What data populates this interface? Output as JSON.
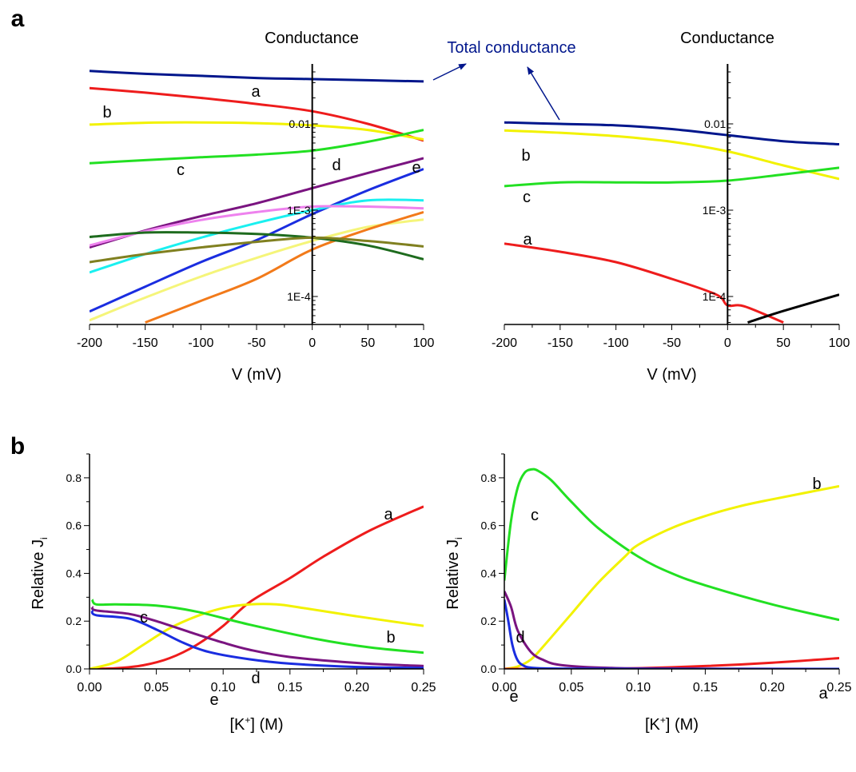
{
  "panel_labels": {
    "a": "a",
    "b": "b"
  },
  "annotations": {
    "total_conductance": "Total conductance"
  },
  "colors": {
    "navy": "#00168C",
    "red": "#EE1C1C",
    "yellow": "#F2F200",
    "green": "#22E022",
    "purple": "#7A1480",
    "blue": "#1A2DE0",
    "cyan": "#1AF0F0",
    "violet": "#EE82EE",
    "lightyellow": "#F5F57A",
    "orange": "#F27A1A",
    "darkgreen": "#1E6B1E",
    "olive": "#808020",
    "black": "#000000"
  },
  "chart_data": [
    {
      "id": "a-left",
      "type": "line",
      "title": "Conductance",
      "xlabel": "V (mV)",
      "ylabel": "",
      "xlim": [
        -200,
        100
      ],
      "ylim_log": [
        5e-05,
        0.1
      ],
      "yscale": "log",
      "xticks": [
        -200,
        -150,
        -100,
        -50,
        0,
        50,
        100
      ],
      "xtick_labels": [
        "-200",
        "-150",
        "-100",
        "-50",
        "0",
        "50",
        "100"
      ],
      "yticks": [
        0.01,
        0.001,
        0.0001
      ],
      "ytick_labels": [
        "0.01",
        "1E-3",
        "1E-4"
      ],
      "series": [
        {
          "name": "",
          "color": "navy",
          "x": [
            -200,
            -150,
            -100,
            -50,
            0,
            50,
            100
          ],
          "y": [
            0.041,
            0.038,
            0.036,
            0.034,
            0.033,
            0.032,
            0.031
          ]
        },
        {
          "name": "a",
          "color": "red",
          "x": [
            -200,
            -150,
            -100,
            -50,
            0,
            50,
            100
          ],
          "y": [
            0.026,
            0.023,
            0.02,
            0.017,
            0.014,
            0.01,
            0.0064
          ]
        },
        {
          "name": "b",
          "color": "yellow",
          "x": [
            -200,
            -150,
            -100,
            -50,
            0,
            50,
            100
          ],
          "y": [
            0.0098,
            0.0103,
            0.0104,
            0.0102,
            0.0096,
            0.0085,
            0.0066
          ]
        },
        {
          "name": "c",
          "color": "green",
          "x": [
            -200,
            -150,
            -100,
            -50,
            0,
            50,
            100
          ],
          "y": [
            0.0035,
            0.0038,
            0.0041,
            0.0044,
            0.0049,
            0.0062,
            0.0085
          ]
        },
        {
          "name": "d",
          "color": "purple",
          "x": [
            -200,
            -150,
            -100,
            -50,
            0,
            50,
            100
          ],
          "y": [
            0.00037,
            0.00058,
            0.00085,
            0.0012,
            0.0018,
            0.0027,
            0.004
          ]
        },
        {
          "name": "e",
          "color": "blue",
          "x": [
            -200,
            -150,
            -100,
            -50,
            0,
            50,
            100
          ],
          "y": [
            6.7e-05,
            0.00013,
            0.00025,
            0.00045,
            0.0009,
            0.0017,
            0.003
          ]
        },
        {
          "name": "",
          "color": "cyan",
          "x": [
            -200,
            -150,
            -100,
            -50,
            0,
            50,
            100
          ],
          "y": [
            0.00019,
            0.00031,
            0.00048,
            0.00071,
            0.001,
            0.0013,
            0.0013
          ]
        },
        {
          "name": "",
          "color": "violet",
          "x": [
            -200,
            -150,
            -100,
            -50,
            0,
            50,
            100
          ],
          "y": [
            0.00039,
            0.00057,
            0.00077,
            0.00095,
            0.0011,
            0.0011,
            0.00105
          ]
        },
        {
          "name": "",
          "color": "lightyellow",
          "x": [
            -200,
            -150,
            -100,
            -50,
            0,
            50,
            100
          ],
          "y": [
            5.3e-05,
            9.7e-05,
            0.00017,
            0.00028,
            0.00044,
            0.00064,
            0.00078
          ]
        },
        {
          "name": "",
          "color": "orange",
          "x": [
            -150,
            -100,
            -50,
            0,
            50,
            100
          ],
          "y": [
            5e-05,
            8.9e-05,
            0.00016,
            0.00035,
            0.0006,
            0.00095
          ]
        },
        {
          "name": "",
          "color": "darkgreen",
          "x": [
            -200,
            -150,
            -100,
            -50,
            0,
            50,
            100
          ],
          "y": [
            0.00049,
            0.00055,
            0.00055,
            0.00053,
            0.00048,
            0.00039,
            0.00027
          ]
        },
        {
          "name": "",
          "color": "olive",
          "x": [
            -200,
            -150,
            -100,
            -50,
            0,
            50,
            100
          ],
          "y": [
            0.00025,
            0.00031,
            0.00037,
            0.00043,
            0.00048,
            0.00044,
            0.00038
          ]
        }
      ],
      "vline_x": 0
    },
    {
      "id": "a-right",
      "type": "line",
      "title": "Conductance",
      "xlabel": "V (mV)",
      "ylabel": "",
      "xlim": [
        -200,
        100
      ],
      "ylim_log": [
        5e-05,
        0.1
      ],
      "yscale": "log",
      "xticks": [
        -200,
        -150,
        -100,
        -50,
        0,
        50,
        100
      ],
      "xtick_labels": [
        "-200",
        "-150",
        "-100",
        "-50",
        "0",
        "50",
        "100"
      ],
      "yticks": [
        0.01,
        0.001,
        0.0001
      ],
      "ytick_labels": [
        "0.01",
        "1E-3",
        "1E-4"
      ],
      "series": [
        {
          "name": "",
          "color": "navy",
          "x": [
            -200,
            -150,
            -100,
            -50,
            0,
            50,
            100
          ],
          "y": [
            0.0104,
            0.01,
            0.0096,
            0.0087,
            0.0074,
            0.0063,
            0.0058
          ]
        },
        {
          "name": "b",
          "color": "yellow",
          "x": [
            -200,
            -150,
            -100,
            -50,
            0,
            50,
            100
          ],
          "y": [
            0.0084,
            0.0079,
            0.0072,
            0.0062,
            0.0048,
            0.0033,
            0.0023
          ]
        },
        {
          "name": "c",
          "color": "green",
          "x": [
            -200,
            -150,
            -100,
            -50,
            0,
            50,
            100
          ],
          "y": [
            0.0019,
            0.0021,
            0.0021,
            0.0021,
            0.0022,
            0.0026,
            0.0031
          ]
        },
        {
          "name": "a",
          "color": "red",
          "x": [
            -200,
            -150,
            -100,
            -50,
            -10,
            0,
            15,
            50
          ],
          "y": [
            0.00041,
            0.00033,
            0.00025,
            0.00016,
            0.000105,
            7.9e-05,
            7.7e-05,
            5e-05
          ]
        },
        {
          "name": "",
          "color": "black",
          "x": [
            18,
            50,
            100
          ],
          "y": [
            5e-05,
            6.8e-05,
            0.000105
          ]
        }
      ],
      "vline_x": 0
    },
    {
      "id": "b-left",
      "type": "line",
      "title": "",
      "xlabel": "[K+] (M)",
      "ylabel": "Relative Ji",
      "xlim": [
        0,
        0.25
      ],
      "ylim": [
        0,
        0.9
      ],
      "xticks": [
        0,
        0.05,
        0.1,
        0.15,
        0.2,
        0.25
      ],
      "xtick_labels": [
        "0.00",
        "0.05",
        "0.10",
        "0.15",
        "0.20",
        "0.25"
      ],
      "yticks": [
        0,
        0.2,
        0.4,
        0.6,
        0.8
      ],
      "ytick_labels": [
        "0.0",
        "0.2",
        "0.4",
        "0.6",
        "0.8"
      ],
      "series": [
        {
          "name": "a",
          "color": "red",
          "x": [
            0.0,
            0.02,
            0.04,
            0.06,
            0.08,
            0.1,
            0.12,
            0.15,
            0.175,
            0.21,
            0.25
          ],
          "y": [
            0.0,
            0.003,
            0.015,
            0.045,
            0.1,
            0.18,
            0.28,
            0.38,
            0.47,
            0.58,
            0.68
          ]
        },
        {
          "name": "b",
          "color": "yellow",
          "x": [
            0.0,
            0.02,
            0.04,
            0.06,
            0.08,
            0.1,
            0.12,
            0.14,
            0.16,
            0.2,
            0.25
          ],
          "y": [
            0.0,
            0.03,
            0.1,
            0.17,
            0.22,
            0.255,
            0.27,
            0.27,
            0.255,
            0.22,
            0.18
          ]
        },
        {
          "name": "c",
          "color": "green",
          "x": [
            0.002,
            0.005,
            0.02,
            0.05,
            0.08,
            0.12,
            0.17,
            0.21,
            0.25
          ],
          "y": [
            0.29,
            0.27,
            0.27,
            0.265,
            0.24,
            0.185,
            0.125,
            0.09,
            0.068
          ]
        },
        {
          "name": "d",
          "color": "purple",
          "x": [
            0.002,
            0.005,
            0.03,
            0.05,
            0.08,
            0.1,
            0.12,
            0.15,
            0.2,
            0.25
          ],
          "y": [
            0.26,
            0.245,
            0.23,
            0.2,
            0.145,
            0.11,
            0.08,
            0.05,
            0.025,
            0.012
          ]
        },
        {
          "name": "e",
          "color": "blue",
          "x": [
            0.002,
            0.005,
            0.03,
            0.05,
            0.07,
            0.09,
            0.12,
            0.15,
            0.2,
            0.25
          ],
          "y": [
            0.245,
            0.225,
            0.21,
            0.165,
            0.11,
            0.07,
            0.04,
            0.022,
            0.008,
            0.004
          ]
        }
      ]
    },
    {
      "id": "b-right",
      "type": "line",
      "title": "",
      "xlabel": "[K+] (M)",
      "ylabel": "Relative Ji",
      "xlim": [
        0,
        0.25
      ],
      "ylim": [
        0,
        0.9
      ],
      "xticks": [
        0,
        0.05,
        0.1,
        0.15,
        0.2,
        0.25
      ],
      "xtick_labels": [
        "0.00",
        "0.05",
        "0.10",
        "0.15",
        "0.20",
        "0.25"
      ],
      "yticks": [
        0,
        0.2,
        0.4,
        0.6,
        0.8
      ],
      "ytick_labels": [
        "0.0",
        "0.2",
        "0.4",
        "0.6",
        "0.8"
      ],
      "series": [
        {
          "name": "c",
          "color": "green",
          "x": [
            0.0,
            0.005,
            0.01,
            0.015,
            0.02,
            0.025,
            0.035,
            0.05,
            0.07,
            0.1,
            0.125,
            0.15,
            0.2,
            0.25
          ],
          "y": [
            0.37,
            0.62,
            0.76,
            0.82,
            0.835,
            0.83,
            0.79,
            0.7,
            0.59,
            0.47,
            0.4,
            0.35,
            0.27,
            0.205
          ]
        },
        {
          "name": "b",
          "color": "yellow",
          "x": [
            0.0,
            0.01,
            0.02,
            0.03,
            0.05,
            0.07,
            0.09,
            0.1,
            0.125,
            0.15,
            0.175,
            0.2,
            0.25
          ],
          "y": [
            0.0,
            0.01,
            0.04,
            0.1,
            0.23,
            0.36,
            0.47,
            0.52,
            0.59,
            0.64,
            0.68,
            0.71,
            0.765
          ]
        },
        {
          "name": "a",
          "color": "red",
          "x": [
            0.0,
            0.05,
            0.1,
            0.15,
            0.2,
            0.25
          ],
          "y": [
            0.0,
            0.0,
            0.003,
            0.012,
            0.026,
            0.045
          ]
        },
        {
          "name": "d",
          "color": "purple",
          "x": [
            0.0,
            0.005,
            0.01,
            0.02,
            0.03,
            0.04,
            0.06,
            0.08,
            0.1,
            0.15,
            0.25
          ],
          "y": [
            0.325,
            0.26,
            0.16,
            0.07,
            0.035,
            0.018,
            0.008,
            0.004,
            0.002,
            0.001,
            0.0
          ]
        },
        {
          "name": "e",
          "color": "blue",
          "x": [
            0.0,
            0.003,
            0.006,
            0.01,
            0.015,
            0.02,
            0.03,
            0.05,
            0.1,
            0.25
          ],
          "y": [
            0.29,
            0.2,
            0.1,
            0.035,
            0.012,
            0.005,
            0.002,
            0.001,
            0.0,
            0.0
          ]
        }
      ]
    }
  ]
}
